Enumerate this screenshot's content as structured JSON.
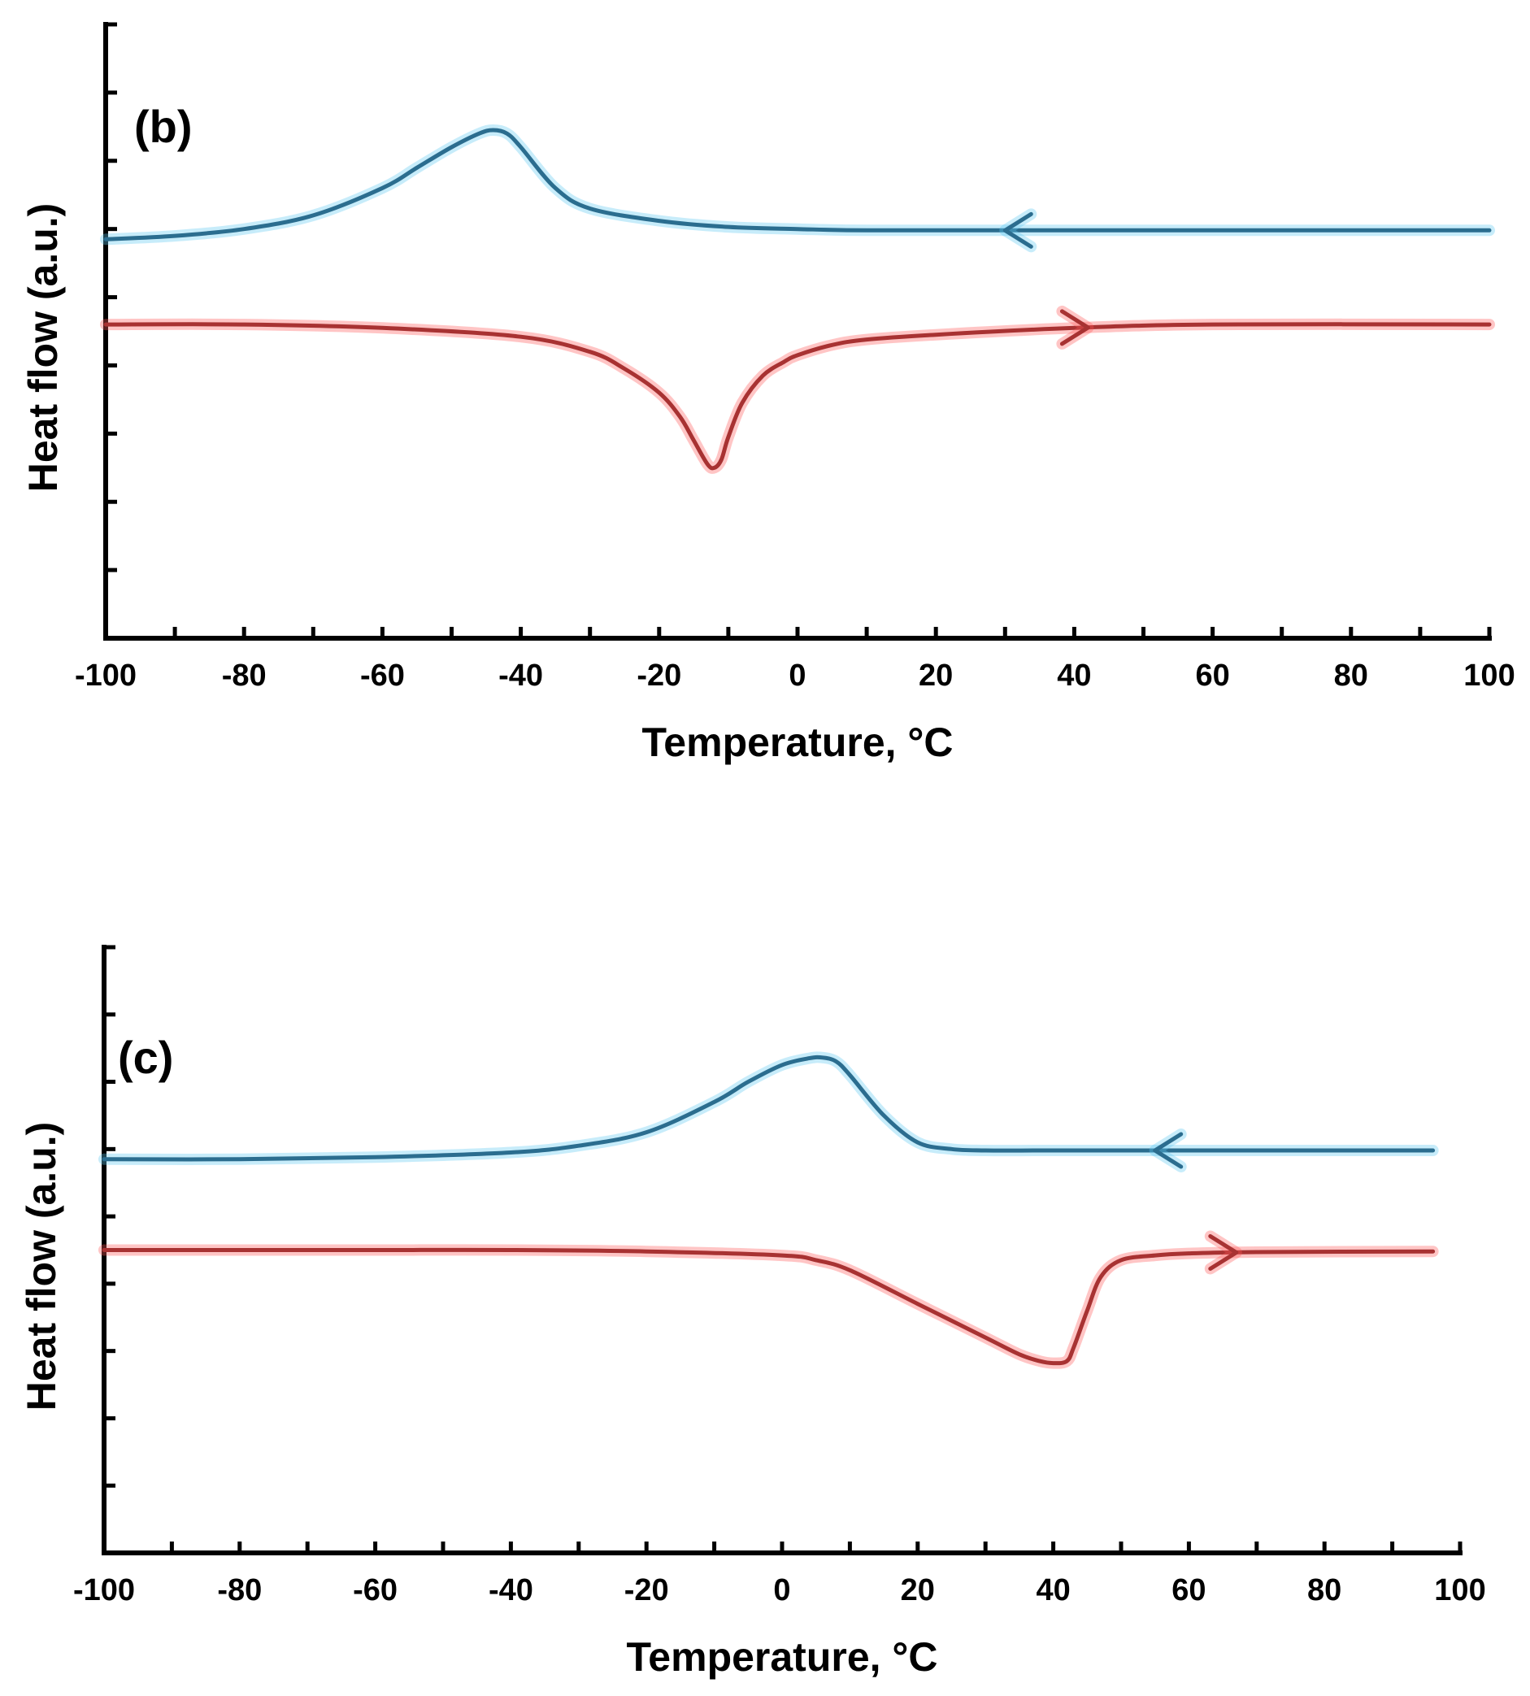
{
  "chart_data": [
    {
      "panel_label": "(b)",
      "type": "line",
      "xlabel": "Temperature, °C",
      "ylabel": "Heat flow (a.u.)",
      "xlim": [
        -100,
        100
      ],
      "ylim": [
        0,
        9
      ],
      "xticks": [
        "-100",
        "-80",
        "-60",
        "-40",
        "-20",
        "0",
        "20",
        "40",
        "60",
        "80",
        "100"
      ],
      "xtick_values": [
        -100,
        -80,
        -60,
        -40,
        -20,
        0,
        20,
        40,
        60,
        80,
        100
      ],
      "grid": false,
      "series": [
        {
          "color": "#2b6d8f",
          "glow": "#5ec8f0",
          "direction": "left",
          "arrow_at": 30,
          "x": [
            -100,
            -90,
            -80,
            -70,
            -60,
            -55,
            -50,
            -46,
            -44,
            -42,
            -40,
            -35,
            -30,
            -20,
            -10,
            0,
            10,
            30,
            60,
            100
          ],
          "y": [
            5.85,
            5.9,
            6.0,
            6.2,
            6.6,
            6.9,
            7.2,
            7.4,
            7.45,
            7.4,
            7.2,
            6.6,
            6.3,
            6.12,
            6.03,
            6.0,
            5.98,
            5.98,
            5.98,
            5.98
          ]
        },
        {
          "color": "#a83232",
          "glow": "#ff5a5a",
          "direction": "right",
          "arrow_at": 42,
          "x": [
            -100,
            -80,
            -60,
            -40,
            -30,
            -25,
            -20,
            -17,
            -15,
            -13,
            -12,
            -11,
            -10,
            -8,
            -5,
            -2,
            0,
            5,
            10,
            20,
            40,
            60,
            100
          ],
          "y": [
            4.6,
            4.6,
            4.55,
            4.42,
            4.2,
            3.95,
            3.6,
            3.25,
            2.9,
            2.55,
            2.5,
            2.62,
            2.95,
            3.45,
            3.85,
            4.05,
            4.15,
            4.3,
            4.38,
            4.45,
            4.55,
            4.6,
            4.6
          ]
        }
      ]
    },
    {
      "panel_label": "(c)",
      "type": "line",
      "xlabel": "Temperature, °C",
      "ylabel": "Heat flow (a.u.)",
      "xlim": [
        -100,
        100
      ],
      "ylim": [
        0,
        9
      ],
      "xticks": [
        "-100",
        "-80",
        "-60",
        "-40",
        "-20",
        "0",
        "20",
        "40",
        "60",
        "80",
        "100"
      ],
      "xtick_values": [
        -100,
        -80,
        -60,
        -40,
        -20,
        0,
        20,
        40,
        60,
        80,
        100
      ],
      "grid": false,
      "series": [
        {
          "color": "#2b6d8f",
          "glow": "#5ec8f0",
          "direction": "left",
          "arrow_at": 55,
          "x": [
            -100,
            -80,
            -60,
            -40,
            -30,
            -20,
            -10,
            -5,
            0,
            4,
            6,
            8,
            10,
            15,
            20,
            25,
            30,
            40,
            60,
            96
          ],
          "y": [
            5.85,
            5.85,
            5.88,
            5.95,
            6.05,
            6.25,
            6.7,
            7.0,
            7.25,
            7.35,
            7.36,
            7.3,
            7.1,
            6.5,
            6.1,
            6.0,
            5.98,
            5.98,
            5.98,
            5.98
          ]
        },
        {
          "color": "#a83232",
          "glow": "#ff5a5a",
          "direction": "right",
          "arrow_at": 67,
          "x": [
            -100,
            -80,
            -60,
            -40,
            -20,
            0,
            5,
            10,
            20,
            30,
            35,
            38,
            40,
            42,
            43,
            45,
            47,
            50,
            55,
            60,
            70,
            96
          ],
          "y": [
            4.5,
            4.5,
            4.5,
            4.5,
            4.48,
            4.42,
            4.35,
            4.2,
            3.7,
            3.2,
            2.95,
            2.85,
            2.82,
            2.85,
            3.05,
            3.6,
            4.1,
            4.35,
            4.42,
            4.45,
            4.47,
            4.48
          ]
        }
      ]
    }
  ]
}
